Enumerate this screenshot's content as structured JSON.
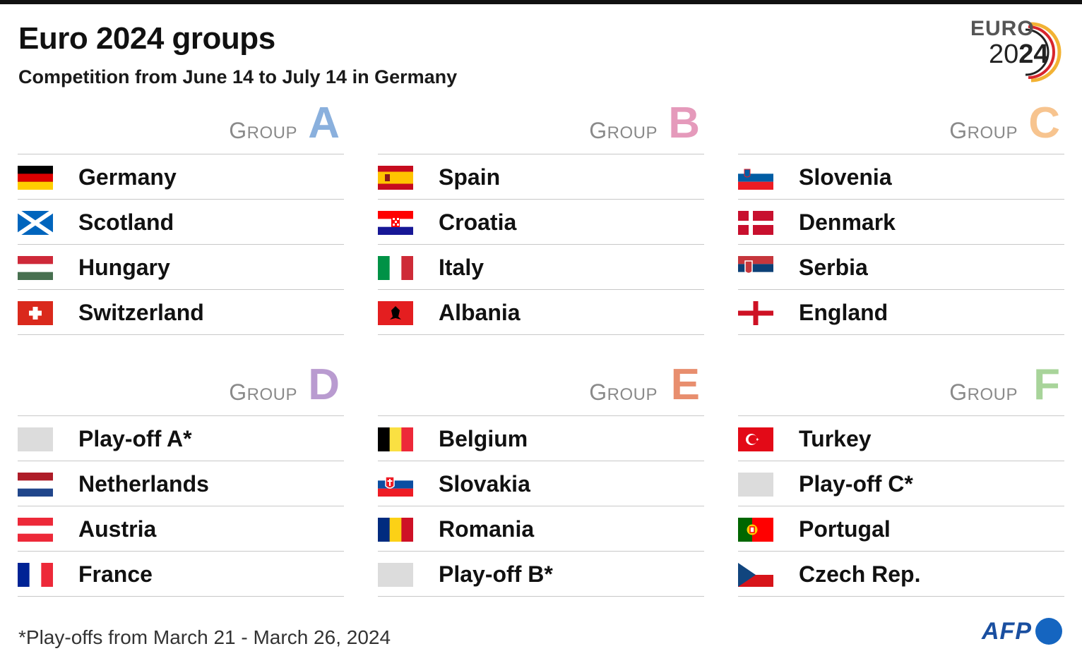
{
  "title": "Euro 2024 groups",
  "subtitle": "Competition from June 14 to July 14 in Germany",
  "logo": {
    "line1": "EURO",
    "year_light": "20",
    "year_bold": "24"
  },
  "group_word": {
    "first": "G",
    "rest": "ROUP"
  },
  "groups": [
    {
      "letter": "A",
      "color": "#8ab0dd",
      "teams": [
        {
          "name": "Germany",
          "flag": "germany-flag-icon"
        },
        {
          "name": "Scotland",
          "flag": "scotland-flag-icon"
        },
        {
          "name": "Hungary",
          "flag": "hungary-flag-icon"
        },
        {
          "name": "Switzerland",
          "flag": "switzerland-flag-icon"
        }
      ]
    },
    {
      "letter": "B",
      "color": "#e59abb",
      "teams": [
        {
          "name": "Spain",
          "flag": "spain-flag-icon"
        },
        {
          "name": "Croatia",
          "flag": "croatia-flag-icon"
        },
        {
          "name": "Italy",
          "flag": "italy-flag-icon"
        },
        {
          "name": "Albania",
          "flag": "albania-flag-icon"
        }
      ]
    },
    {
      "letter": "C",
      "color": "#f7c48f",
      "teams": [
        {
          "name": "Slovenia",
          "flag": "slovenia-flag-icon"
        },
        {
          "name": "Denmark",
          "flag": "denmark-flag-icon"
        },
        {
          "name": "Serbia",
          "flag": "serbia-flag-icon"
        },
        {
          "name": "England",
          "flag": "england-flag-icon"
        }
      ]
    },
    {
      "letter": "D",
      "color": "#b99bd0",
      "teams": [
        {
          "name": "Play-off A*",
          "flag": "blank-flag-icon"
        },
        {
          "name": "Netherlands",
          "flag": "netherlands-flag-icon"
        },
        {
          "name": "Austria",
          "flag": "austria-flag-icon"
        },
        {
          "name": "France",
          "flag": "france-flag-icon"
        }
      ]
    },
    {
      "letter": "E",
      "color": "#e88e6e",
      "teams": [
        {
          "name": "Belgium",
          "flag": "belgium-flag-icon"
        },
        {
          "name": "Slovakia",
          "flag": "slovakia-flag-icon"
        },
        {
          "name": "Romania",
          "flag": "romania-flag-icon"
        },
        {
          "name": "Play-off B*",
          "flag": "blank-flag-icon"
        }
      ]
    },
    {
      "letter": "F",
      "color": "#a8d49a",
      "teams": [
        {
          "name": "Turkey",
          "flag": "turkey-flag-icon"
        },
        {
          "name": "Play-off C*",
          "flag": "blank-flag-icon"
        },
        {
          "name": "Portugal",
          "flag": "portugal-flag-icon"
        },
        {
          "name": "Czech Rep.",
          "flag": "czech-flag-icon"
        }
      ]
    }
  ],
  "footnote": "*Play-offs from March 21 - March 26, 2024",
  "credit": "AFP"
}
